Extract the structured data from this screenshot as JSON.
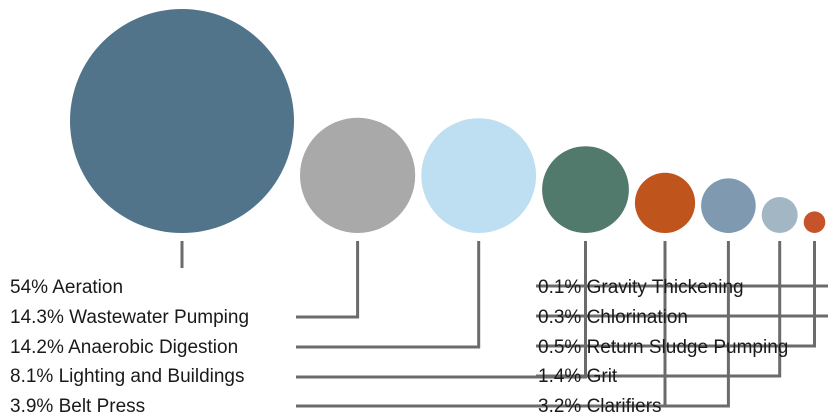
{
  "chart_data": {
    "type": "bubble",
    "title": "",
    "unit": "%",
    "series": [
      {
        "label": "54% Aeration",
        "value": 54,
        "color": "#51748a"
      },
      {
        "label": "14.3% Wastewater Pumping",
        "value": 14.3,
        "color": "#a9a9a9"
      },
      {
        "label": "14.2% Anaerobic Digestion",
        "value": 14.2,
        "color": "#bedff2"
      },
      {
        "label": "8.1% Lighting and Buildings",
        "value": 8.1,
        "color": "#517a6c"
      },
      {
        "label": "3.9% Belt Press",
        "value": 3.9,
        "color": "#c0541d"
      },
      {
        "label": "3.2% Clarifiers",
        "value": 3.2,
        "color": "#7f99b0"
      },
      {
        "label": "1.4% Grit",
        "value": 1.4,
        "color": "#a3b6c4"
      },
      {
        "label": "0.5% Return Sludge Pumping",
        "value": 0.5,
        "color": "#c6532a"
      },
      {
        "label": "0.3% Chlorination",
        "value": 0.3,
        "color": "#b8b8b8"
      },
      {
        "label": "0.1% Gravity Thickening",
        "value": 0.1,
        "color": "#cccccc"
      }
    ]
  }
}
